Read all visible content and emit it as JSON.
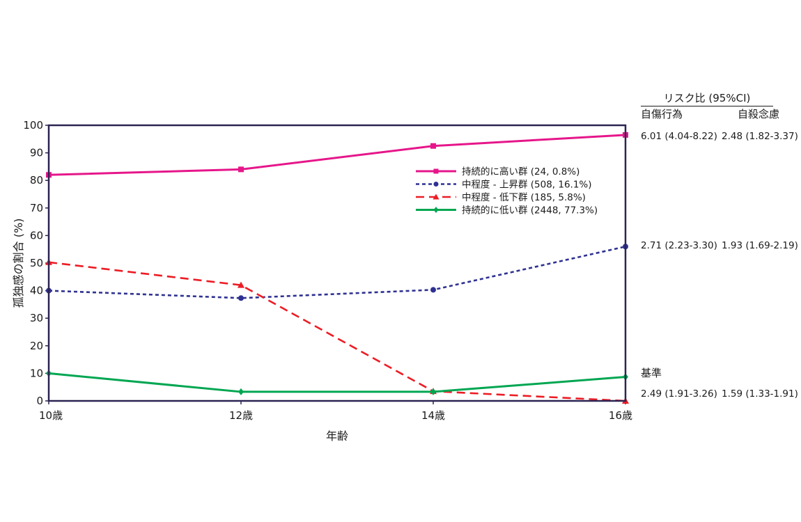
{
  "chart_data": {
    "type": "line",
    "x": [
      "10歳",
      "12歳",
      "14歳",
      "16歳"
    ],
    "xlabel": "年齢",
    "ylabel": "孤独感の割合 (%)",
    "ylim": [
      0,
      100
    ],
    "yticks": [
      0,
      10,
      20,
      30,
      40,
      50,
      60,
      70,
      80,
      90,
      100
    ],
    "grid": false,
    "legend_position": "top-right",
    "series": [
      {
        "name": "持続的に高い群 (24, 0.8%)",
        "values": [
          82,
          84,
          92.5,
          96.5
        ],
        "color": "#e6168a",
        "style": "solid",
        "marker": "square"
      },
      {
        "name": "中程度 - 上昇群 (508, 16.1%)",
        "values": [
          40,
          37.3,
          40.3,
          56
        ],
        "color": "#2e3192",
        "style": "dotted",
        "marker": "circle"
      },
      {
        "name": "中程度 - 低下群 (185, 5.8%)",
        "values": [
          50.3,
          42,
          3.5,
          0
        ],
        "color": "#ed1c24",
        "style": "dashed",
        "marker": "triangle"
      },
      {
        "name": "持続的に低い群 (2448, 77.3%)",
        "values": [
          10,
          3.3,
          3.3,
          8.7
        ],
        "color": "#00a651",
        "style": "solid",
        "marker": "diamond"
      }
    ]
  },
  "risk_table": {
    "title": "リスク比 (95%CI)",
    "col1": "自傷行為",
    "col2": "自殺念慮",
    "rows": [
      {
        "label": "",
        "c1": "6.01 (4.04-8.22)",
        "c2": "2.48 (1.82-3.37)"
      },
      {
        "label": "",
        "c1": "2.71 (2.23-3.30)",
        "c2": "1.93 (1.69-2.19)"
      },
      {
        "label": "基準",
        "c1": "",
        "c2": ""
      },
      {
        "label": "",
        "c1": "2.49 (1.91-3.26)",
        "c2": "1.59 (1.33-1.91)"
      }
    ]
  }
}
